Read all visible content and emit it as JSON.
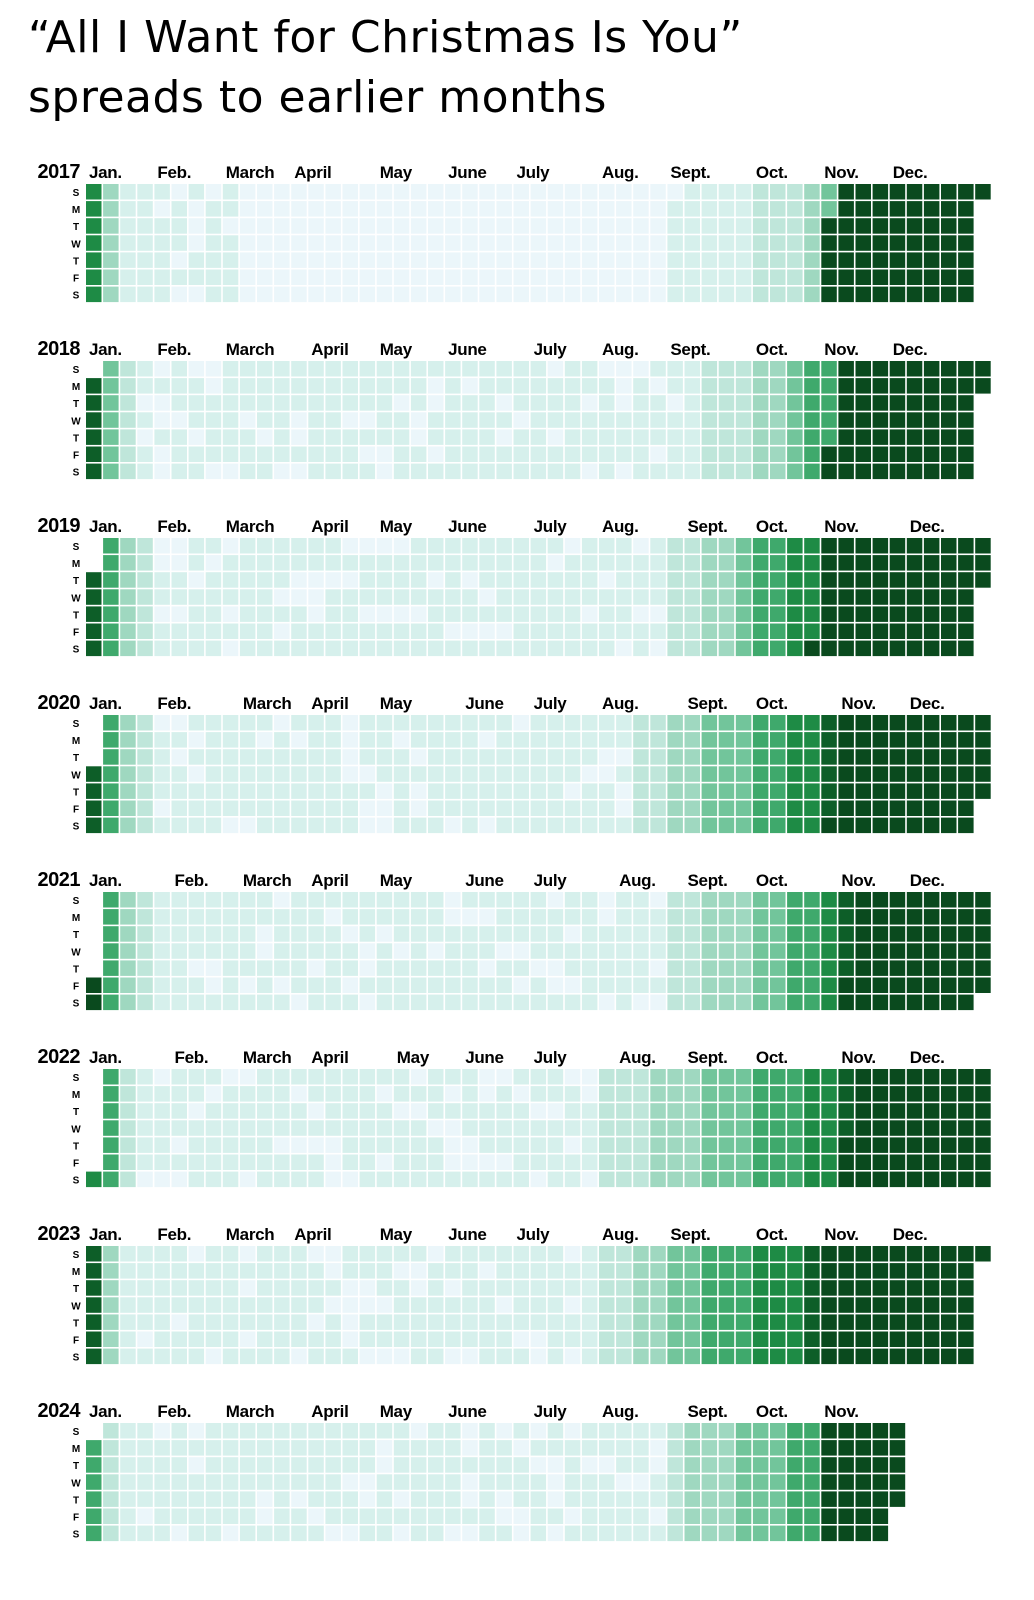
{
  "title_lines": [
    "“All I Want for Christmas Is You”",
    "spreads to earlier months"
  ],
  "colors": {
    "background": "#ffffff",
    "cell_gap": "#ffffff",
    "scale": [
      "#ebf6fa",
      "#d6f0ec",
      "#bfe6da",
      "#9fd8c0",
      "#72c59b",
      "#3fa96c",
      "#1e8b45",
      "#0d5e28",
      "#0a4a1e"
    ]
  },
  "chart_data": {
    "type": "heatmap",
    "title": "“All I Want for Christmas Is You” spreads to earlier months",
    "description_axis": "calendar: columns are weeks, rows are days of week",
    "day_labels": [
      "S",
      "M",
      "T",
      "W",
      "T",
      "F",
      "S"
    ],
    "month_labels": [
      "Jan.",
      "Feb.",
      "March",
      "April",
      "May",
      "June",
      "July",
      "Aug.",
      "Sept.",
      "Oct.",
      "Nov.",
      "Dec."
    ],
    "value_scale": "0 = lowest relative daily popularity, 8 = highest",
    "years": [
      {
        "year": "2017",
        "months": [
          "Jan.",
          "Feb.",
          "March",
          "April",
          "May",
          "June",
          "July",
          "Aug.",
          "Sept.",
          "Oct.",
          "Nov.",
          "Dec."
        ],
        "last_day_index": 364,
        "shelf": [
          {
            "week": 0,
            "level": 6
          },
          {
            "week": 1,
            "level": 3
          },
          {
            "week": 2,
            "level": 1
          },
          {
            "week": 3,
            "level": 1
          },
          {
            "week": 9,
            "level": 0
          },
          {
            "week": 34,
            "level": 1
          },
          {
            "week": 39,
            "level": 2
          },
          {
            "week": 42,
            "level": 3
          },
          {
            "week": 43,
            "level": 4
          },
          {
            "week": 44,
            "level": 5
          },
          {
            "week": 45,
            "level": 8
          }
        ],
        "xmas_start": 303
      },
      {
        "year": "2018",
        "months": [
          "Jan.",
          "Feb.",
          "March",
          "April",
          "May",
          "June",
          "July",
          "Aug.",
          "Sept.",
          "Oct.",
          "Nov.",
          "Dec."
        ],
        "last_day_index": 364,
        "shelf": [
          {
            "week": 0,
            "level": 7
          },
          {
            "week": 1,
            "level": 4
          },
          {
            "week": 2,
            "level": 2
          },
          {
            "week": 3,
            "level": 1
          },
          {
            "week": 34,
            "level": 1
          },
          {
            "week": 36,
            "level": 2
          },
          {
            "week": 39,
            "level": 3
          },
          {
            "week": 41,
            "level": 4
          },
          {
            "week": 42,
            "level": 5
          },
          {
            "week": 44,
            "level": 6
          },
          {
            "week": 45,
            "level": 8
          }
        ],
        "xmas_start": 305
      },
      {
        "year": "2019",
        "months": [
          "Jan.",
          "Feb.",
          "March",
          "April",
          "May",
          "June",
          "July",
          "Aug.",
          "Sept.",
          "Oct.",
          "Nov.",
          "Dec."
        ],
        "last_day_index": 364,
        "shelf": [
          {
            "week": 0,
            "level": 7
          },
          {
            "week": 1,
            "level": 5
          },
          {
            "week": 2,
            "level": 3
          },
          {
            "week": 3,
            "level": 2
          },
          {
            "week": 4,
            "level": 1
          },
          {
            "week": 34,
            "level": 2
          },
          {
            "week": 36,
            "level": 3
          },
          {
            "week": 38,
            "level": 4
          },
          {
            "week": 39,
            "level": 5
          },
          {
            "week": 41,
            "level": 6
          },
          {
            "week": 43,
            "level": 7
          },
          {
            "week": 44,
            "level": 8
          }
        ],
        "xmas_start": 298
      },
      {
        "year": "2020",
        "months": [
          "Jan.",
          "Feb.",
          "March",
          "April",
          "May",
          "June",
          "July",
          "Aug.",
          "Sept.",
          "Oct.",
          "Nov.",
          "Dec."
        ],
        "last_day_index": 365,
        "shelf": [
          {
            "week": 0,
            "level": 7
          },
          {
            "week": 1,
            "level": 5
          },
          {
            "week": 2,
            "level": 3
          },
          {
            "week": 3,
            "level": 2
          },
          {
            "week": 4,
            "level": 1
          },
          {
            "week": 32,
            "level": 2
          },
          {
            "week": 34,
            "level": 3
          },
          {
            "week": 36,
            "level": 4
          },
          {
            "week": 39,
            "level": 5
          },
          {
            "week": 41,
            "level": 6
          },
          {
            "week": 43,
            "level": 7
          },
          {
            "week": 44,
            "level": 8
          }
        ],
        "xmas_start": 304
      },
      {
        "year": "2021",
        "months": [
          "Jan.",
          "Feb.",
          "March",
          "April",
          "May",
          "June",
          "July",
          "Aug.",
          "Sept.",
          "Oct.",
          "Nov.",
          "Dec."
        ],
        "last_day_index": 364,
        "shelf": [
          {
            "week": 0,
            "level": 8
          },
          {
            "week": 1,
            "level": 5
          },
          {
            "week": 2,
            "level": 3
          },
          {
            "week": 3,
            "level": 2
          },
          {
            "week": 4,
            "level": 1
          },
          {
            "week": 34,
            "level": 2
          },
          {
            "week": 36,
            "level": 3
          },
          {
            "week": 39,
            "level": 4
          },
          {
            "week": 41,
            "level": 5
          },
          {
            "week": 43,
            "level": 6
          },
          {
            "week": 44,
            "level": 7
          },
          {
            "week": 45,
            "level": 8
          }
        ],
        "xmas_start": 308
      },
      {
        "year": "2022",
        "months": [
          "Jan.",
          "Feb.",
          "March",
          "April",
          "May",
          "June",
          "July",
          "Aug.",
          "Sept.",
          "Oct.",
          "Nov.",
          "Dec."
        ],
        "last_day_index": 364,
        "shelf": [
          {
            "week": 0,
            "level": 6
          },
          {
            "week": 1,
            "level": 5
          },
          {
            "week": 2,
            "level": 2
          },
          {
            "week": 3,
            "level": 1
          },
          {
            "week": 30,
            "level": 2
          },
          {
            "week": 33,
            "level": 3
          },
          {
            "week": 36,
            "level": 4
          },
          {
            "week": 39,
            "level": 5
          },
          {
            "week": 42,
            "level": 6
          },
          {
            "week": 44,
            "level": 7
          },
          {
            "week": 45,
            "level": 8
          }
        ],
        "xmas_start": 306
      },
      {
        "year": "2023",
        "months": [
          "Jan.",
          "Feb.",
          "March",
          "April",
          "May",
          "June",
          "July",
          "Aug.",
          "Sept.",
          "Oct.",
          "Nov.",
          "Dec."
        ],
        "last_day_index": 364,
        "shelf": [
          {
            "week": 0,
            "level": 7
          },
          {
            "week": 1,
            "level": 3
          },
          {
            "week": 2,
            "level": 1
          },
          {
            "week": 30,
            "level": 2
          },
          {
            "week": 32,
            "level": 3
          },
          {
            "week": 34,
            "level": 4
          },
          {
            "week": 36,
            "level": 5
          },
          {
            "week": 39,
            "level": 6
          },
          {
            "week": 42,
            "level": 7
          },
          {
            "week": 44,
            "level": 8
          }
        ],
        "xmas_start": 301
      },
      {
        "year": "2024",
        "months": [
          "Jan.",
          "Feb.",
          "March",
          "April",
          "May",
          "June",
          "July",
          "Aug.",
          "Sept.",
          "Oct.",
          "Nov."
        ],
        "last_day_index": 332,
        "shelf": [
          {
            "week": 0,
            "level": 5
          },
          {
            "week": 1,
            "level": 2
          },
          {
            "week": 2,
            "level": 1
          },
          {
            "week": 34,
            "level": 2
          },
          {
            "week": 35,
            "level": 3
          },
          {
            "week": 38,
            "level": 4
          },
          {
            "week": 41,
            "level": 5
          },
          {
            "week": 43,
            "level": 8
          }
        ],
        "xmas_start": 304
      }
    ]
  }
}
